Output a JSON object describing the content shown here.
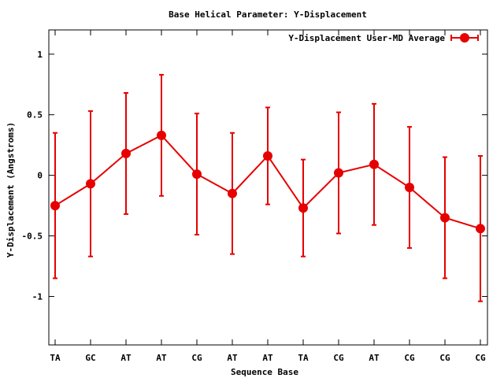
{
  "chart_data": {
    "type": "line",
    "title": "Base  Helical Parameter: Y-Displacement",
    "xlabel": "Sequence Base",
    "ylabel": "Y-Displacement (Angstroms)",
    "categories": [
      "TA",
      "GC",
      "AT",
      "AT",
      "CG",
      "AT",
      "AT",
      "TA",
      "CG",
      "AT",
      "CG",
      "CG",
      "CG"
    ],
    "ylim": [
      -1.4,
      1.2
    ],
    "yticks": [
      -1,
      -0.5,
      0,
      0.5,
      1
    ],
    "ytick_labels": [
      "-1",
      "-0.5",
      "0",
      "0.5",
      "1"
    ],
    "legend_position": "top-right",
    "grid": false,
    "series": [
      {
        "name": "Y-Displacement User-MD Average",
        "color": "#e60000",
        "values": [
          -0.25,
          -0.07,
          0.18,
          0.33,
          0.01,
          -0.15,
          0.16,
          -0.27,
          0.02,
          0.09,
          -0.1,
          -0.35,
          -0.44
        ],
        "error_low": [
          -0.85,
          -0.67,
          -0.32,
          -0.17,
          -0.49,
          -0.65,
          -0.24,
          -0.67,
          -0.48,
          -0.41,
          -0.6,
          -0.85,
          -1.04
        ],
        "error_high": [
          0.35,
          0.53,
          0.68,
          0.83,
          0.51,
          0.35,
          0.56,
          0.13,
          0.52,
          0.59,
          0.4,
          0.15,
          0.16
        ]
      }
    ]
  }
}
